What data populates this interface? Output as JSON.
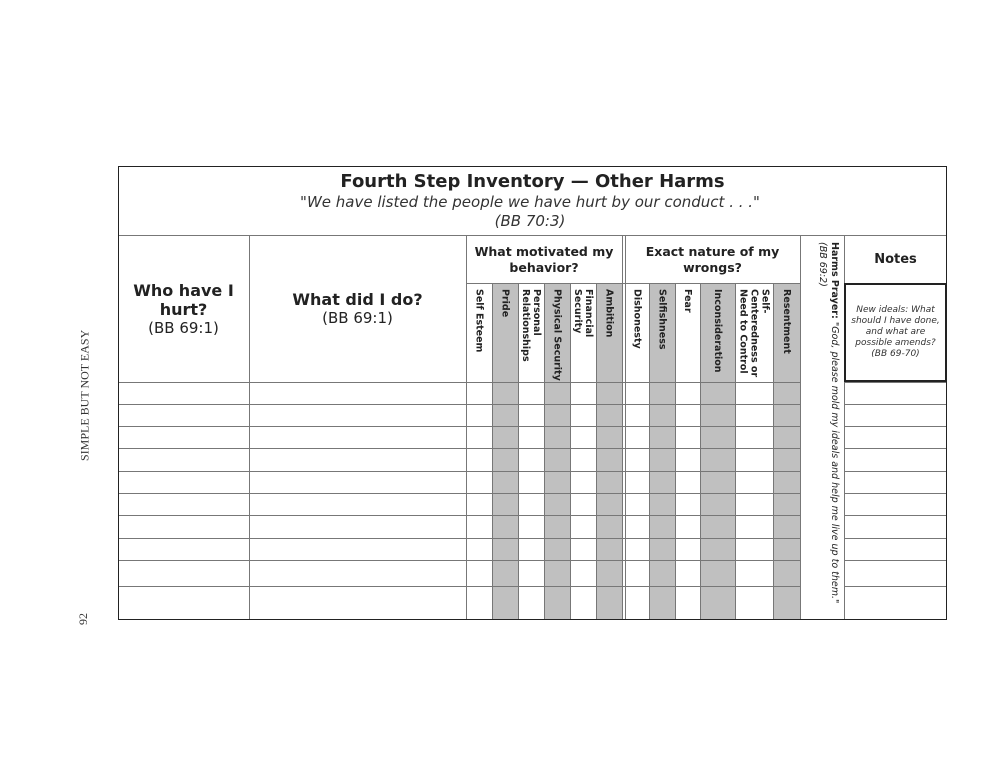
{
  "margin": {
    "running_title": "SIMPLE BUT NOT EASY",
    "page_number": "92"
  },
  "header": {
    "title": "Fourth Step Inventory — Other Harms",
    "quote": "\"We have listed the people we have hurt by our conduct . . .\"",
    "quote_ref": "(BB 70:3)"
  },
  "columns": {
    "who": {
      "label": "Who have I hurt?",
      "ref": "(BB 69:1)"
    },
    "what": {
      "label": "What did I do?",
      "ref": "(BB 69:1)"
    },
    "motivation_group": "What motivated my behavior?",
    "motivations": [
      {
        "label": "Self Esteem",
        "shaded": false
      },
      {
        "label": "Pride",
        "shaded": true
      },
      {
        "label": "Personal Relationships",
        "shaded": false
      },
      {
        "label": "Physical Security",
        "shaded": true
      },
      {
        "label": "Financial Security",
        "shaded": false
      },
      {
        "label": "Ambition",
        "shaded": true
      }
    ],
    "wrongs_group": "Exact nature of my wrongs?",
    "wrongs": [
      {
        "label": "Dishonesty",
        "shaded": false
      },
      {
        "label": "Selfishness",
        "shaded": true
      },
      {
        "label": "Fear",
        "shaded": false
      },
      {
        "label": "Inconsideration",
        "shaded": true
      },
      {
        "label": "Self-Centeredness or Need to Control",
        "shaded": false
      },
      {
        "label": "Resentment",
        "shaded": true
      }
    ],
    "prayer": {
      "label": "Harms Prayer:",
      "text": "\"God, please mold my ideals and help me live up to them.\"",
      "ref": "(BB 69:2)"
    },
    "notes": {
      "label": "Notes",
      "prompt": "New ideals: What should I have done, and what are possible amends?",
      "prompt_ref": "(BB 69-70)"
    }
  },
  "rows": 10,
  "colors": {
    "shade": "#c0c0c0",
    "border": "#222222",
    "grid": "#777777"
  }
}
